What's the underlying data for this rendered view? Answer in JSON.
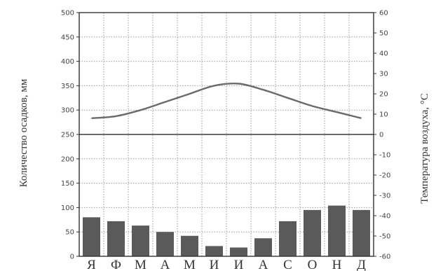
{
  "chart_data": {
    "type": "bar+line",
    "title": "",
    "categories": [
      "Я",
      "Ф",
      "М",
      "А",
      "М",
      "И",
      "И",
      "А",
      "С",
      "О",
      "Н",
      "Д"
    ],
    "series": [
      {
        "type": "bar",
        "axis": "left",
        "color": "#5a5a5a",
        "values": [
          80,
          72,
          63,
          50,
          42,
          21,
          18,
          37,
          72,
          95,
          104,
          95
        ]
      },
      {
        "type": "line",
        "axis": "right",
        "color": "#6a6a6a",
        "values": [
          8,
          9,
          12,
          16,
          20,
          24,
          25,
          22,
          18,
          14,
          11,
          8
        ]
      }
    ],
    "ylabel": "Количество осадков, мм",
    "y2label": "Температура воздуха, °С",
    "ylim": [
      0,
      500
    ],
    "y2lim": [
      -60,
      60
    ],
    "yticks": [
      "500",
      "450",
      "400",
      "350",
      "300",
      "250",
      "200",
      "150",
      "100",
      "50",
      "0"
    ],
    "y2ticks": [
      "60",
      "50",
      "40",
      "30",
      "20",
      "10",
      "0",
      "-10",
      "-20",
      "-30",
      "-40",
      "-50",
      "-60"
    ],
    "grid": true,
    "legend": "none"
  }
}
